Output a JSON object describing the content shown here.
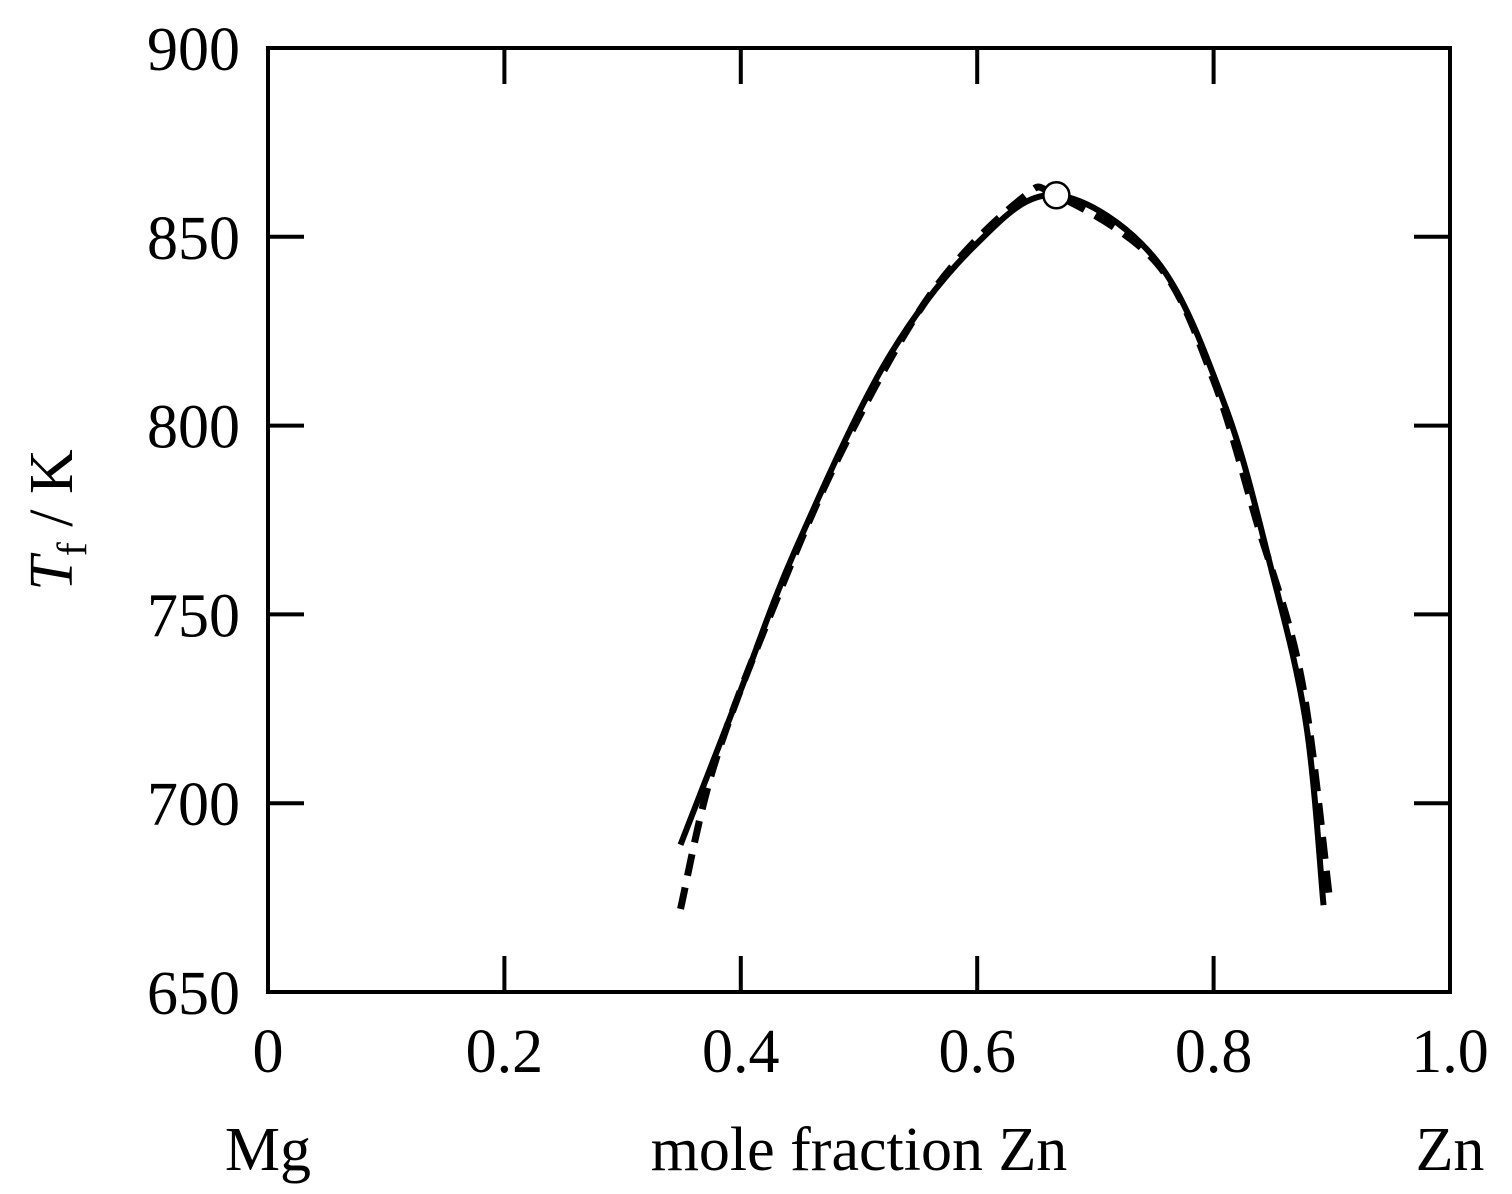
{
  "chart_data": {
    "type": "line",
    "title": "",
    "xlabel": "mole fraction Zn",
    "xlabel_left_end": "Mg",
    "xlabel_right_end": "Zn",
    "ylabel_main": "T",
    "ylabel_sub": "f",
    "ylabel_unit": " / K",
    "xlim": [
      0,
      1.0
    ],
    "ylim": [
      650,
      900
    ],
    "xticks": [
      0,
      0.2,
      0.4,
      0.6,
      0.8,
      1.0
    ],
    "xtick_labels": [
      "0",
      "0.2",
      "0.4",
      "0.6",
      "0.8",
      "1.0"
    ],
    "yticks": [
      650,
      700,
      750,
      800,
      850,
      900
    ],
    "ytick_labels": [
      "650",
      "700",
      "750",
      "800",
      "850",
      "900"
    ],
    "grid": false,
    "series": [
      {
        "style": "solid",
        "color": "#000000",
        "x": [
          0.349,
          0.4,
          0.446,
          0.523,
          0.599,
          0.667,
          0.752,
          0.81,
          0.848,
          0.878,
          0.893
        ],
        "y": [
          689,
          730,
          767,
          817,
          848,
          861,
          843.6,
          805,
          763,
          721.5,
          673
        ]
      },
      {
        "style": "dashed",
        "color": "#000000",
        "x": [
          0.349,
          0.377,
          0.427,
          0.485,
          0.561,
          0.637,
          0.667,
          0.752,
          0.8,
          0.836,
          0.874,
          0.898
        ],
        "y": [
          672,
          709.6,
          751.4,
          793,
          835,
          860,
          861,
          843,
          812,
          775,
          733.4,
          675
        ]
      }
    ],
    "markers": [
      {
        "x": 0.667,
        "y": 861,
        "shape": "open-circle"
      }
    ]
  }
}
